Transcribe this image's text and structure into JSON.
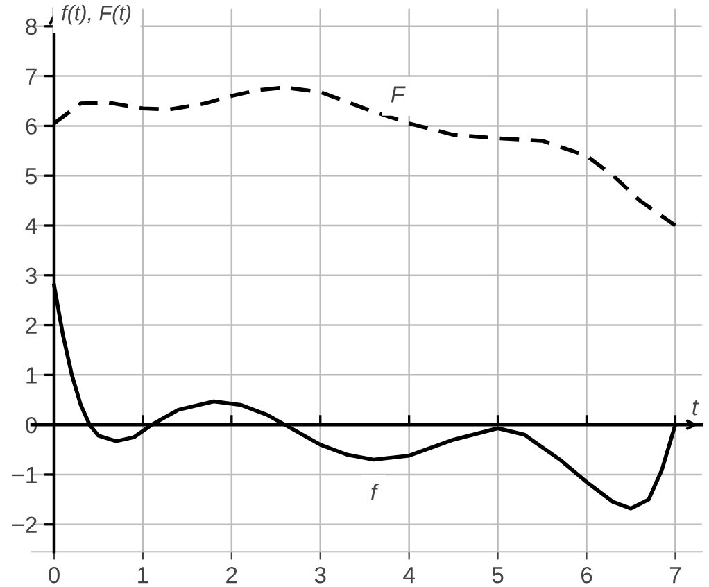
{
  "chart_data": {
    "type": "line",
    "xlabel": "t",
    "ylabel": "f(t), F(t)",
    "xlim": [
      -0.25,
      7.3
    ],
    "ylim": [
      -2.55,
      8.35
    ],
    "xticks": [
      0,
      1,
      2,
      3,
      4,
      5,
      6,
      7
    ],
    "yticks": [
      -2,
      -1,
      0,
      1,
      2,
      3,
      4,
      5,
      6,
      7,
      8
    ],
    "grid": true,
    "legend": false,
    "series": [
      {
        "name": "F",
        "color": "#000000",
        "line_style": "dashed",
        "x": [
          0,
          0.3,
          0.6,
          1,
          1.3,
          1.7,
          2,
          2.3,
          2.6,
          3,
          3.5,
          4,
          4.5,
          5,
          5.5,
          6,
          6.3,
          6.6,
          7
        ],
        "values": [
          6.05,
          6.45,
          6.47,
          6.35,
          6.33,
          6.45,
          6.6,
          6.72,
          6.77,
          6.68,
          6.35,
          6.05,
          5.82,
          5.75,
          5.7,
          5.4,
          5.0,
          4.5,
          4.0
        ]
      },
      {
        "name": "f",
        "color": "#000000",
        "line_style": "solid",
        "x": [
          0,
          0.1,
          0.2,
          0.3,
          0.4,
          0.5,
          0.7,
          0.9,
          1.1,
          1.4,
          1.8,
          2.1,
          2.4,
          2.6,
          3,
          3.3,
          3.6,
          4,
          4.5,
          5,
          5.3,
          5.7,
          6,
          6.3,
          6.5,
          6.7,
          6.85,
          7
        ],
        "values": [
          2.8,
          1.8,
          1.0,
          0.4,
          0,
          -0.22,
          -0.33,
          -0.25,
          0,
          0.3,
          0.47,
          0.4,
          0.2,
          0,
          -0.4,
          -0.6,
          -0.7,
          -0.62,
          -0.3,
          -0.07,
          -0.2,
          -0.7,
          -1.15,
          -1.55,
          -1.68,
          -1.5,
          -0.9,
          0
        ]
      }
    ]
  }
}
